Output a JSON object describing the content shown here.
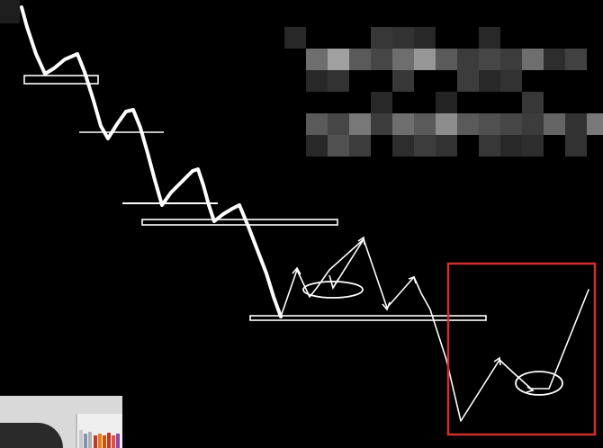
{
  "canvas": {
    "background": "#000000",
    "stroke_color": "#ffffff",
    "highlight_color": "#d32f2f"
  },
  "diagram": {
    "description_labels": [],
    "redacted_text_block": "pixelated",
    "highlight_box": "red-rectangle",
    "marked_patterns": [
      "ellipse-mark",
      "ellipse-mark"
    ]
  }
}
